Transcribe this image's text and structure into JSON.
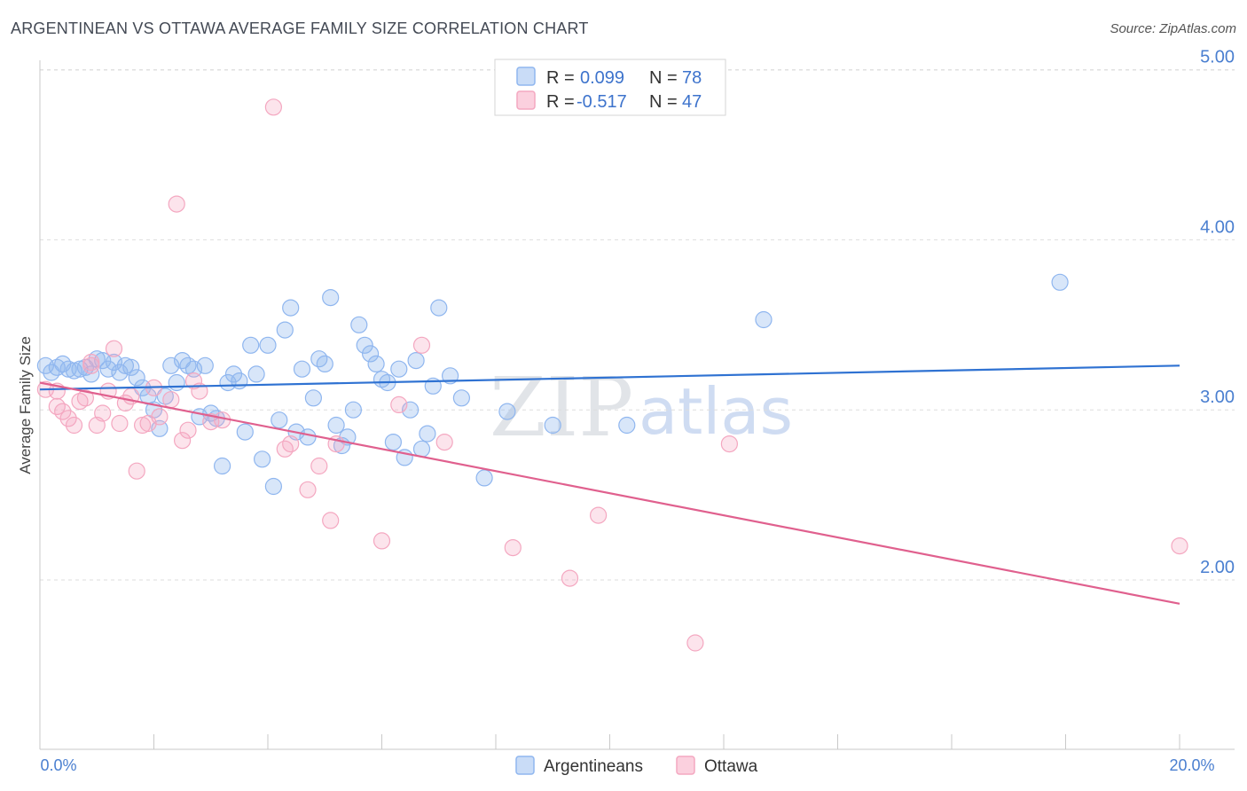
{
  "chart_data": {
    "type": "scatter",
    "title": "ARGENTINEAN VS OTTAWA AVERAGE FAMILY SIZE CORRELATION CHART",
    "source": "Source: ZipAtlas.com",
    "ylabel": "Average Family Size",
    "xlabel": "",
    "xlim": [
      0.0,
      0.2
    ],
    "ylim": [
      1.0,
      5.1
    ],
    "x_tick_labels": [
      "0.0%",
      "20.0%"
    ],
    "y_ticks": [
      2.0,
      3.0,
      4.0,
      5.0
    ],
    "y_tick_labels": [
      "2.00",
      "3.00",
      "4.00",
      "5.00"
    ],
    "watermark": {
      "zip": "ZIP",
      "atlas": "atlas"
    },
    "legend": [
      {
        "r_label": "R =",
        "r_value": "0.099",
        "n_label": "N =",
        "n_value": "78",
        "color": "#8fb6ef"
      },
      {
        "r_label": "R =",
        "r_value": "-0.517",
        "n_label": "N =",
        "n_value": "47",
        "color": "#f4a7c0"
      }
    ],
    "series": [
      {
        "name": "Argentineans",
        "color": "#8fb6ef",
        "line_color": "#2f72d2",
        "trend": {
          "x0": 0.0,
          "y0": 3.12,
          "x1": 0.2,
          "y1": 3.26
        },
        "points": [
          [
            0.001,
            3.26
          ],
          [
            0.002,
            3.22
          ],
          [
            0.003,
            3.25
          ],
          [
            0.004,
            3.27
          ],
          [
            0.005,
            3.24
          ],
          [
            0.006,
            3.23
          ],
          [
            0.007,
            3.24
          ],
          [
            0.008,
            3.25
          ],
          [
            0.009,
            3.21
          ],
          [
            0.01,
            3.3
          ],
          [
            0.011,
            3.29
          ],
          [
            0.012,
            3.24
          ],
          [
            0.013,
            3.28
          ],
          [
            0.014,
            3.22
          ],
          [
            0.015,
            3.26
          ],
          [
            0.016,
            3.25
          ],
          [
            0.017,
            3.19
          ],
          [
            0.018,
            3.13
          ],
          [
            0.019,
            3.08
          ],
          [
            0.02,
            3.0
          ],
          [
            0.021,
            2.89
          ],
          [
            0.022,
            3.08
          ],
          [
            0.023,
            3.26
          ],
          [
            0.024,
            3.16
          ],
          [
            0.025,
            3.29
          ],
          [
            0.026,
            3.26
          ],
          [
            0.027,
            3.24
          ],
          [
            0.028,
            2.96
          ],
          [
            0.029,
            3.26
          ],
          [
            0.03,
            2.98
          ],
          [
            0.031,
            2.95
          ],
          [
            0.032,
            2.67
          ],
          [
            0.033,
            3.16
          ],
          [
            0.034,
            3.21
          ],
          [
            0.035,
            3.17
          ],
          [
            0.036,
            2.87
          ],
          [
            0.037,
            3.38
          ],
          [
            0.038,
            3.21
          ],
          [
            0.039,
            2.71
          ],
          [
            0.04,
            3.38
          ],
          [
            0.041,
            2.55
          ],
          [
            0.042,
            2.94
          ],
          [
            0.043,
            3.47
          ],
          [
            0.044,
            3.6
          ],
          [
            0.045,
            2.87
          ],
          [
            0.046,
            3.24
          ],
          [
            0.047,
            2.84
          ],
          [
            0.048,
            3.07
          ],
          [
            0.049,
            3.3
          ],
          [
            0.05,
            3.27
          ],
          [
            0.051,
            3.66
          ],
          [
            0.052,
            2.91
          ],
          [
            0.053,
            2.79
          ],
          [
            0.054,
            2.84
          ],
          [
            0.055,
            3.0
          ],
          [
            0.056,
            3.5
          ],
          [
            0.057,
            3.38
          ],
          [
            0.058,
            3.33
          ],
          [
            0.059,
            3.27
          ],
          [
            0.06,
            3.18
          ],
          [
            0.061,
            3.16
          ],
          [
            0.062,
            2.81
          ],
          [
            0.063,
            3.24
          ],
          [
            0.064,
            2.72
          ],
          [
            0.065,
            3.0
          ],
          [
            0.066,
            3.29
          ],
          [
            0.067,
            2.77
          ],
          [
            0.068,
            2.86
          ],
          [
            0.069,
            3.14
          ],
          [
            0.07,
            3.6
          ],
          [
            0.072,
            3.2
          ],
          [
            0.074,
            3.07
          ],
          [
            0.078,
            2.6
          ],
          [
            0.082,
            2.99
          ],
          [
            0.09,
            2.91
          ],
          [
            0.103,
            2.91
          ],
          [
            0.127,
            3.53
          ],
          [
            0.179,
            3.75
          ]
        ]
      },
      {
        "name": "Ottawa",
        "color": "#f4a7c0",
        "line_color": "#e0608e",
        "trend": {
          "x0": 0.0,
          "y0": 3.16,
          "x1": 0.2,
          "y1": 1.86
        },
        "points": [
          [
            0.001,
            3.12
          ],
          [
            0.003,
            3.02
          ],
          [
            0.004,
            2.99
          ],
          [
            0.005,
            2.95
          ],
          [
            0.006,
            2.91
          ],
          [
            0.007,
            3.05
          ],
          [
            0.008,
            3.07
          ],
          [
            0.009,
            3.26
          ],
          [
            0.01,
            2.91
          ],
          [
            0.011,
            2.98
          ],
          [
            0.012,
            3.11
          ],
          [
            0.013,
            3.36
          ],
          [
            0.014,
            2.92
          ],
          [
            0.015,
            3.04
          ],
          [
            0.016,
            3.08
          ],
          [
            0.017,
            2.64
          ],
          [
            0.018,
            2.91
          ],
          [
            0.019,
            2.92
          ],
          [
            0.02,
            3.13
          ],
          [
            0.021,
            2.96
          ],
          [
            0.023,
            3.06
          ],
          [
            0.024,
            4.21
          ],
          [
            0.025,
            2.82
          ],
          [
            0.026,
            2.88
          ],
          [
            0.027,
            3.17
          ],
          [
            0.028,
            3.11
          ],
          [
            0.03,
            2.93
          ],
          [
            0.032,
            2.94
          ],
          [
            0.041,
            4.78
          ],
          [
            0.043,
            2.77
          ],
          [
            0.044,
            2.8
          ],
          [
            0.047,
            2.53
          ],
          [
            0.049,
            2.67
          ],
          [
            0.051,
            2.35
          ],
          [
            0.052,
            2.8
          ],
          [
            0.06,
            2.23
          ],
          [
            0.063,
            3.03
          ],
          [
            0.067,
            3.38
          ],
          [
            0.071,
            2.81
          ],
          [
            0.083,
            2.19
          ],
          [
            0.093,
            2.01
          ],
          [
            0.098,
            2.38
          ],
          [
            0.115,
            1.63
          ],
          [
            0.121,
            2.8
          ],
          [
            0.2,
            2.2
          ],
          [
            0.009,
            3.28
          ],
          [
            0.003,
            3.11
          ]
        ]
      }
    ]
  }
}
